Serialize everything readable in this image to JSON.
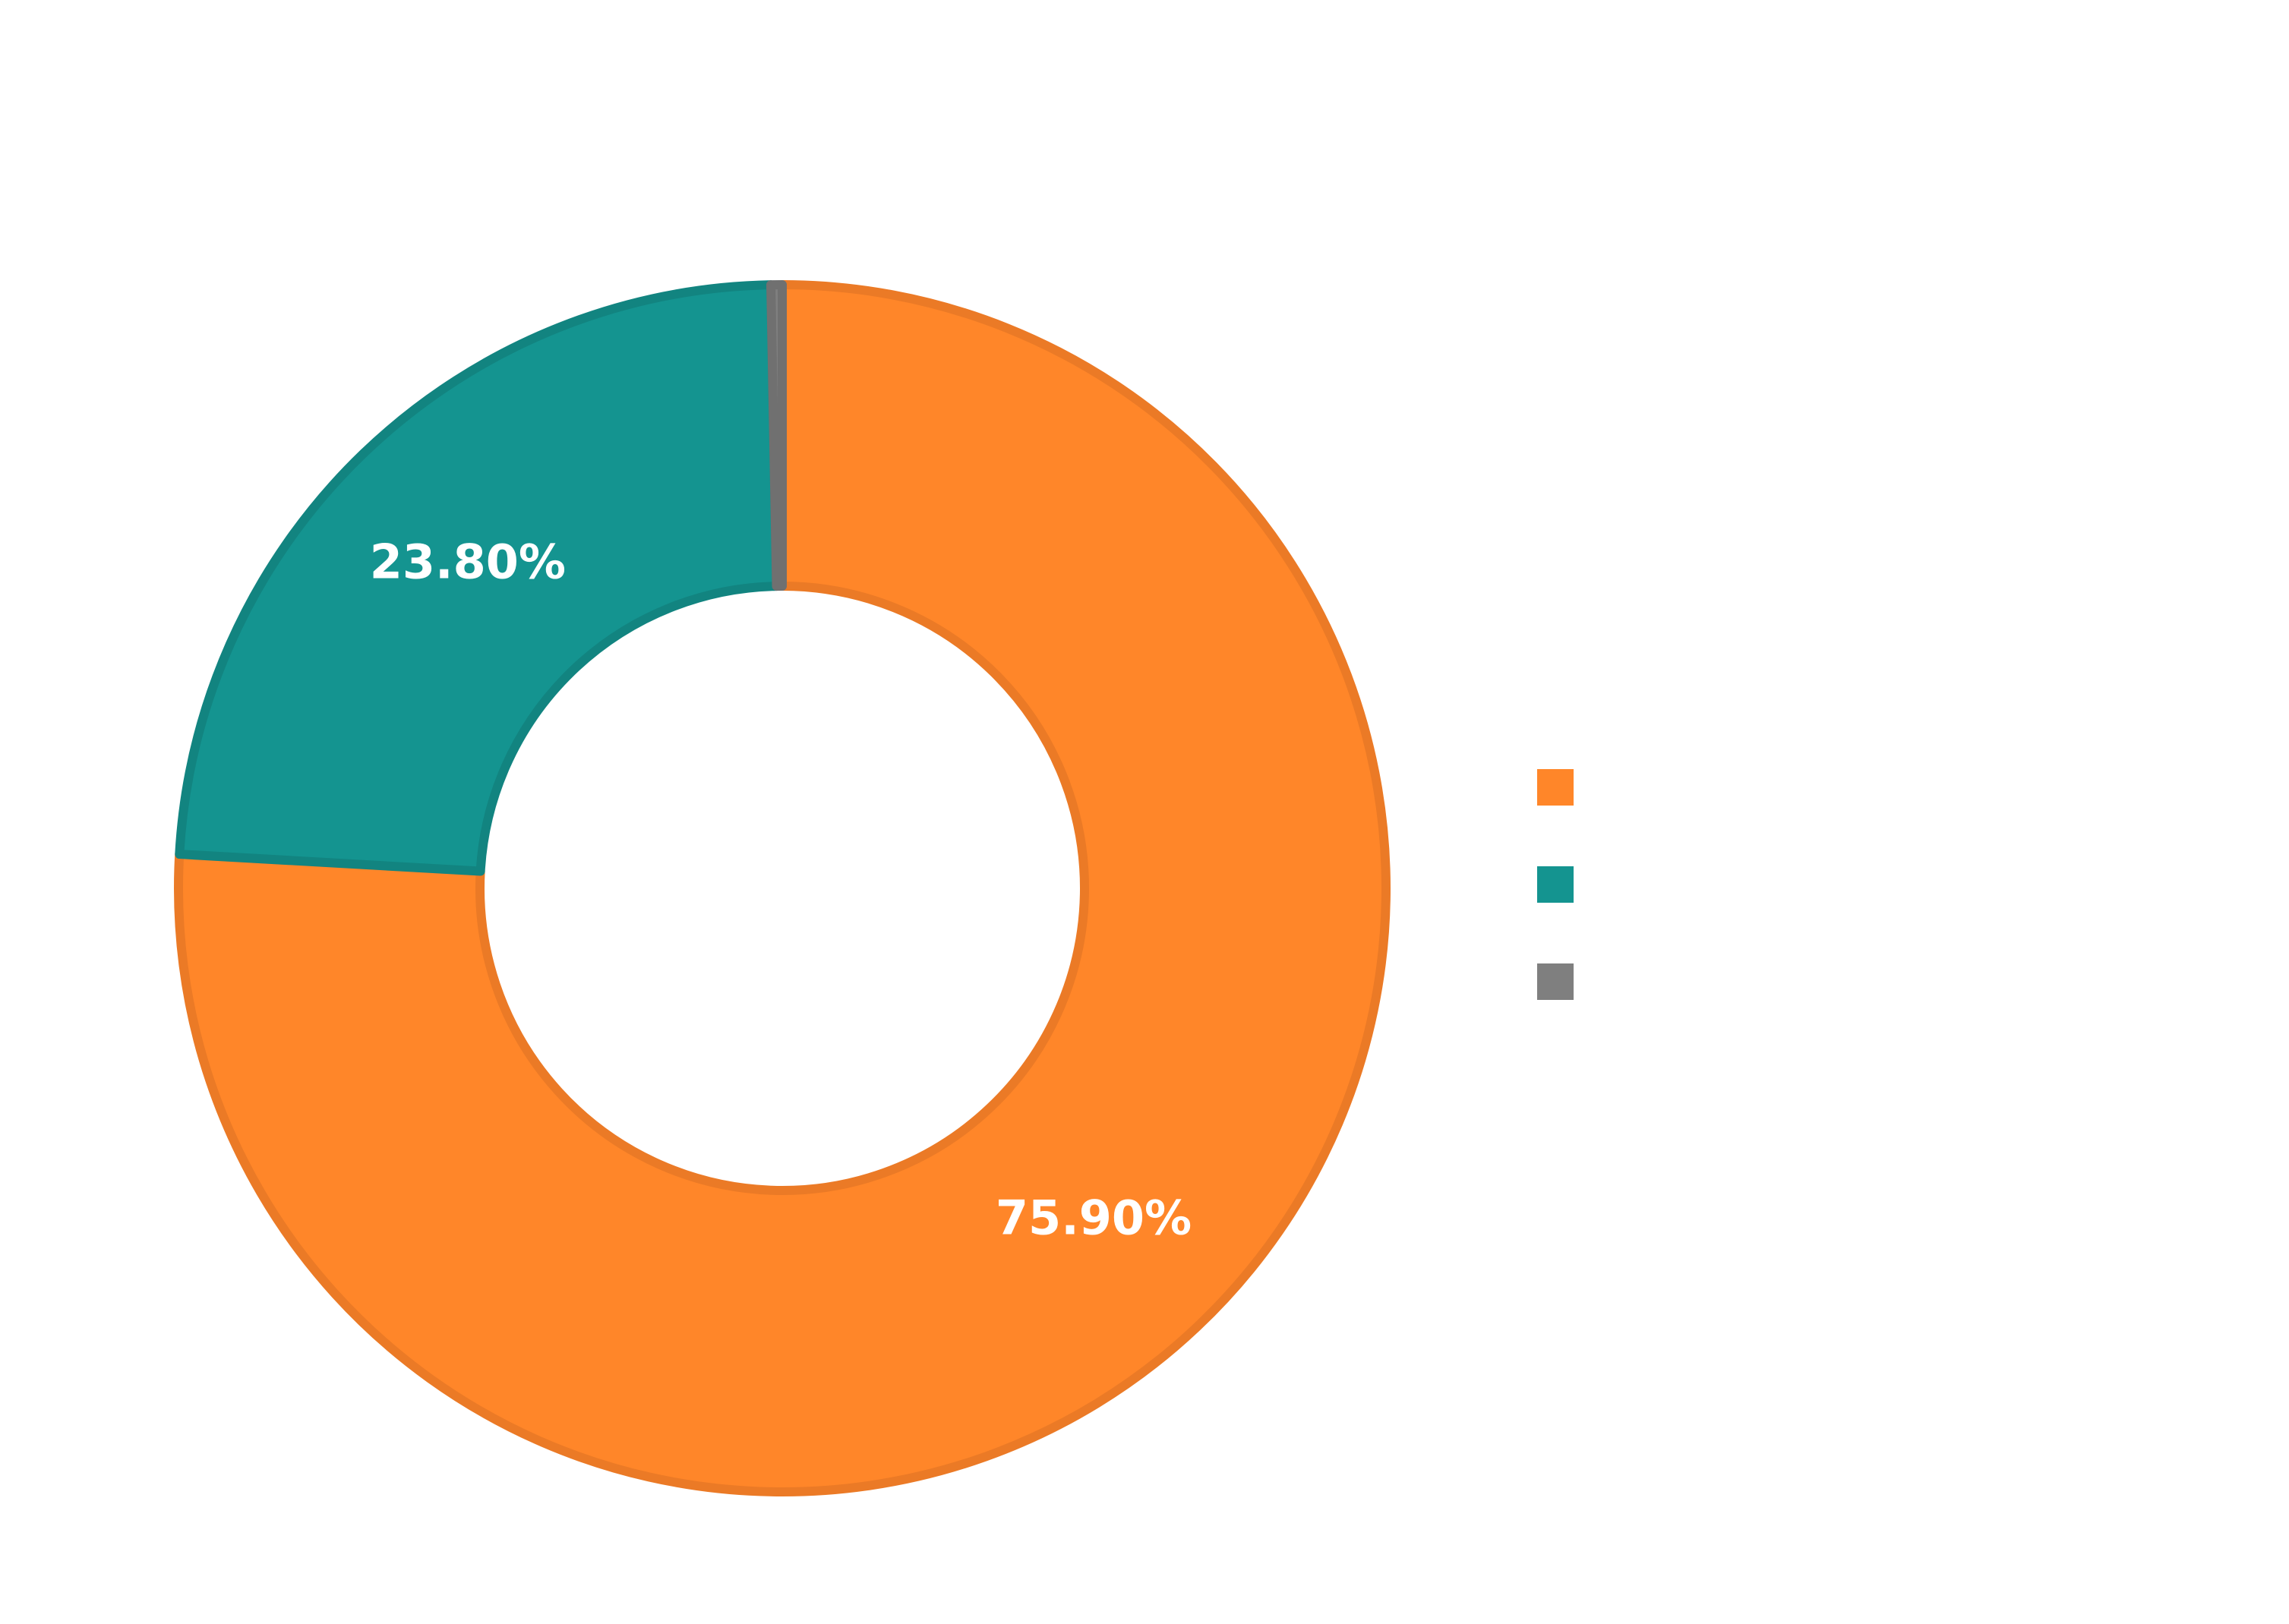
{
  "chart_data": {
    "type": "pie",
    "donut": true,
    "title": "",
    "categories": [
      "",
      "",
      ""
    ],
    "values": [
      75.9,
      23.8,
      0.3
    ],
    "data_labels": [
      "75.90%",
      "23.80%",
      ""
    ],
    "colors": [
      "#FF8629",
      "#149490",
      "#7F7F7F"
    ],
    "border_colors": [
      "#EB7A26",
      "#128480",
      "#707070"
    ],
    "legend_position": "right",
    "start_angle_deg": 0,
    "direction": "clockwise"
  }
}
